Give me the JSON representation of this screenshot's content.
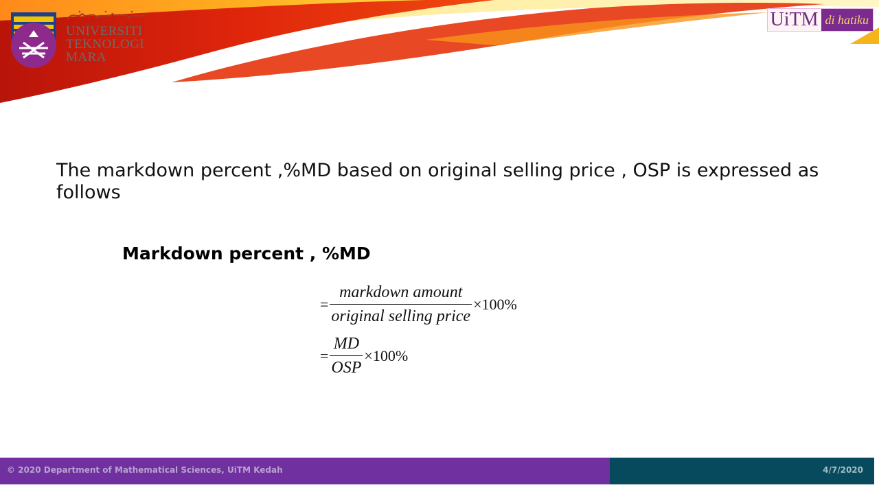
{
  "header": {
    "university_lines": [
      "UNIVERSITI",
      "TEKNOLOGI",
      "MARA"
    ],
    "brand_name": "UiTM",
    "brand_tagline": "di hatiku",
    "colors": {
      "swoosh_red": "#d81e05",
      "swoosh_orange": "#f28c00",
      "swoosh_yellow": "#ffd200",
      "brand_purple": "#7b2b8e"
    },
    "icons": [
      "uitm-crest-icon",
      "jawi-script-icon"
    ]
  },
  "content": {
    "intro": "The markdown percent ,%MD based on original selling price , OSP is expressed as follows",
    "heading": "Markdown percent , %MD",
    "equations": [
      {
        "equals": "=",
        "numerator": "markdown amount",
        "denominator": "original selling price",
        "multiplier": "×100%"
      },
      {
        "equals": "=",
        "numerator": "MD",
        "denominator": "OSP",
        "multiplier": "×100%"
      }
    ]
  },
  "footer": {
    "copyright": "© 2020 Department of Mathematical Sciences, UiTM Kedah",
    "date": "4/7/2020",
    "colors": {
      "left": "#7030a0",
      "right": "#074a5d"
    }
  }
}
